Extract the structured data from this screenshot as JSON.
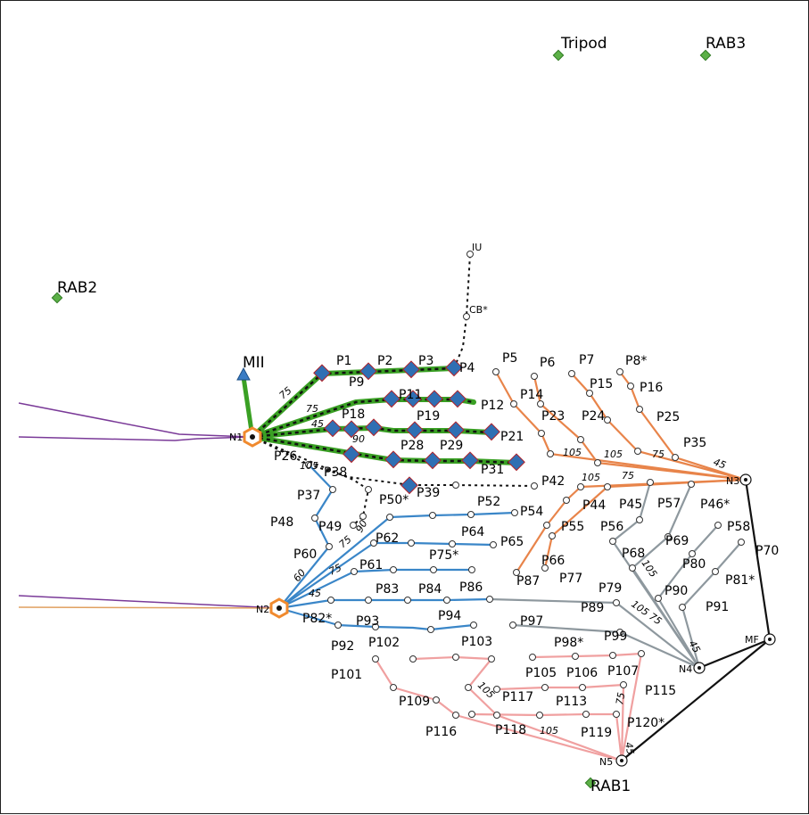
{
  "colors": {
    "green": "#3aa024",
    "orange": "#e8844a",
    "blue": "#3a86c8",
    "gray": "#8e989e",
    "pink": "#f0a0a0",
    "purple": "#7a3a98",
    "black": "#111111",
    "landmark": "#5cb047",
    "diamond": "#2f6fb3",
    "diamond_edge": "#b0222a",
    "hex": "#f08a2e"
  },
  "icons": {
    "landmark": "green-diamond-icon",
    "camera": "blue-triangle-icon",
    "station": "orange-hexagon-icon",
    "node": "ring-dot-icon",
    "point": "hollow-circle-icon",
    "marker": "blue-diamond-icon"
  },
  "landmarks": {
    "tripod": "Tripod",
    "rab3": "RAB3",
    "rab2": "RAB2",
    "rab1": "RAB1",
    "mii": "MII"
  },
  "nodes": {
    "n1": "N1",
    "n2": "N2",
    "n3": "N3",
    "n4": "N4",
    "n5": "N5",
    "mf": "MF",
    "iu": "IU",
    "cb": "CB*"
  },
  "points": [
    "P1",
    "P2",
    "P3",
    "P4",
    "P5",
    "P6",
    "P7",
    "P8*",
    "P9",
    "P11",
    "P12",
    "P14",
    "P15",
    "P16",
    "P18",
    "P19",
    "P21",
    "P23",
    "P24",
    "P25",
    "P26",
    "P28",
    "P29",
    "P31",
    "P35",
    "P37",
    "P38",
    "P39",
    "P42",
    "P44",
    "P45",
    "P46*",
    "P48",
    "P49",
    "P50*",
    "P52",
    "P54",
    "P55",
    "P56",
    "P57",
    "P58",
    "P60",
    "P61",
    "P62",
    "P64",
    "P65",
    "P66",
    "P68",
    "P69",
    "P70",
    "P75*",
    "P77",
    "P79",
    "P80",
    "P81*",
    "P82*",
    "P83",
    "P84",
    "P86",
    "P87",
    "P89",
    "P90",
    "P91",
    "P92",
    "P93",
    "P94",
    "P97",
    "P98*",
    "P99",
    "P101",
    "P102",
    "P103",
    "P105",
    "P106",
    "P107",
    "P109",
    "P113",
    "P115",
    "P116",
    "P117",
    "P118",
    "P119",
    "P120*"
  ],
  "distances": [
    "75",
    "75",
    "45",
    "90",
    "105",
    "105",
    "105",
    "105",
    "75",
    "75",
    "45",
    "90",
    "75",
    "60",
    "75",
    "45",
    "105",
    "105",
    "75",
    "45",
    "105",
    "105",
    "75",
    "45"
  ]
}
